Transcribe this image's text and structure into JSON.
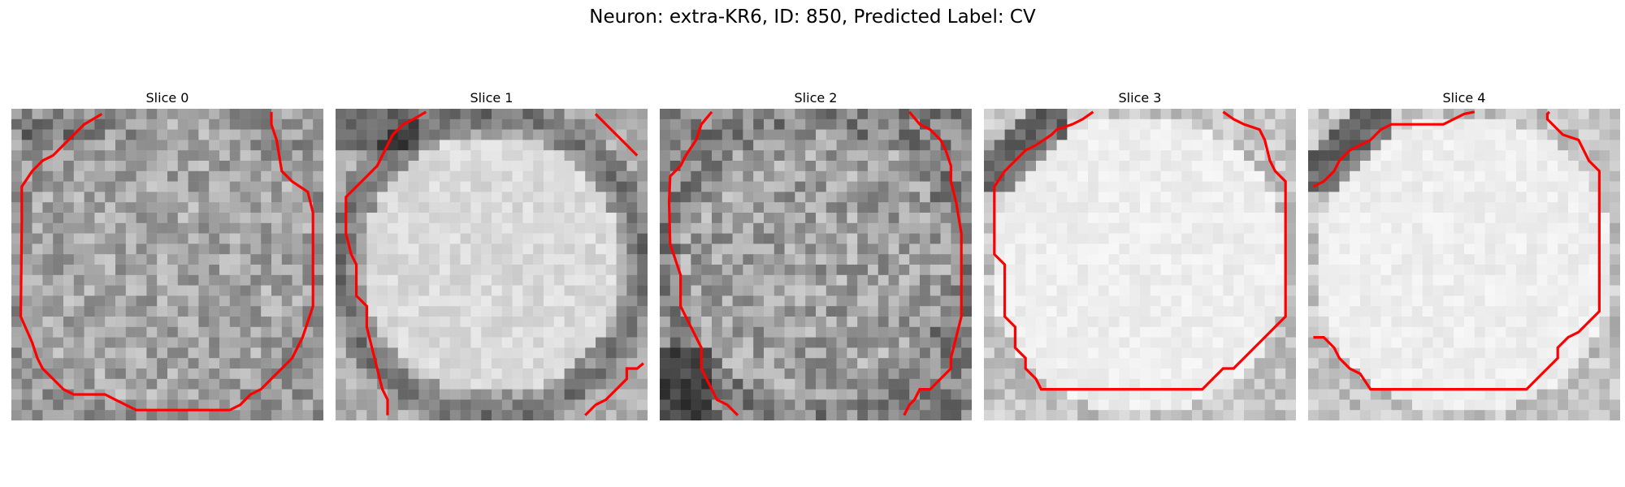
{
  "figure": {
    "title": "Neuron: extra-KR6, ID: 850, Predicted Label: CV"
  },
  "panels": [
    {
      "title": "Slice 0",
      "scene": "noisy-gray"
    },
    {
      "title": "Slice 1",
      "scene": "bright-ring"
    },
    {
      "title": "Slice 2",
      "scene": "noisy-dark"
    },
    {
      "title": "Slice 3",
      "scene": "bright"
    },
    {
      "title": "Slice 4",
      "scene": "bright"
    }
  ],
  "colors": {
    "contour": "#ff0000",
    "background": "#ffffff"
  }
}
